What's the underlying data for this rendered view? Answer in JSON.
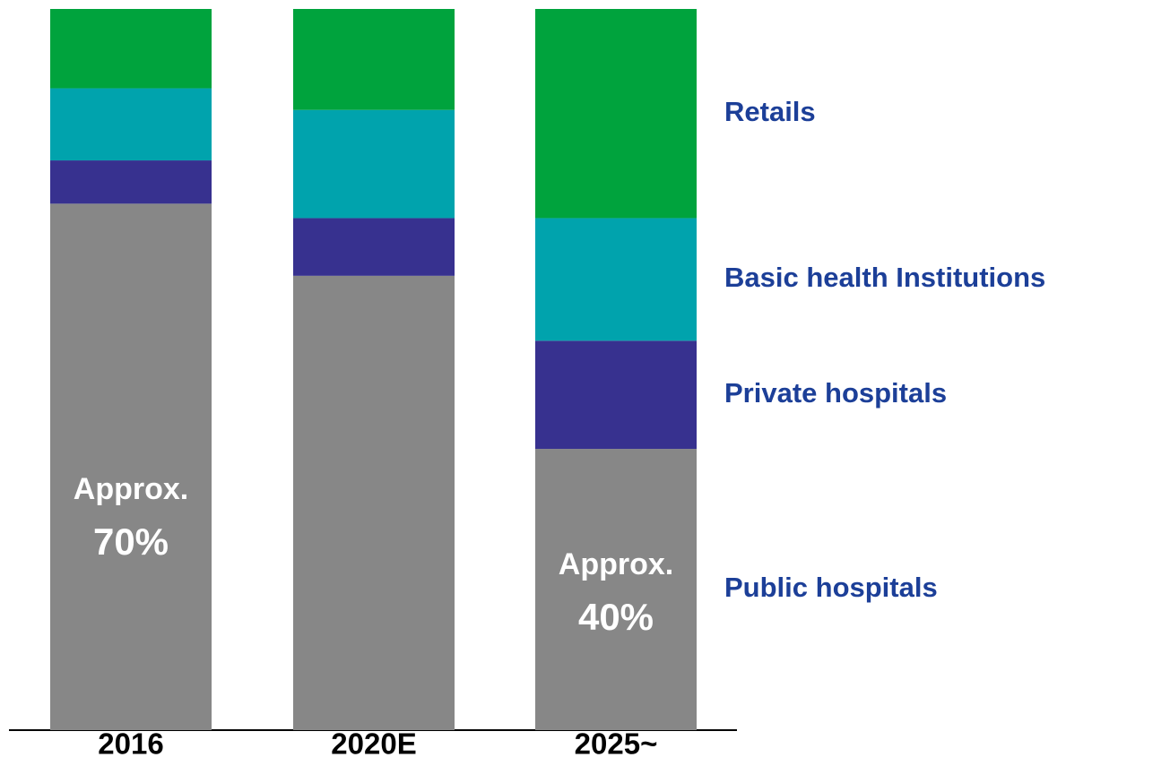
{
  "chart_data": {
    "type": "stacked_bar",
    "categories": [
      "2016",
      "2020E",
      "2025~"
    ],
    "series": [
      {
        "name": "Public hospitals",
        "color": "#878787",
        "values": [
          73,
          63,
          39
        ]
      },
      {
        "name": "Private hospitals",
        "color": "#37318f",
        "values": [
          6,
          8,
          15
        ]
      },
      {
        "name": "Basic health Institutions",
        "color": "#00a3ad",
        "values": [
          10,
          15,
          17
        ]
      },
      {
        "name": "Retails",
        "color": "#00a33d",
        "values": [
          11,
          14,
          29
        ]
      }
    ],
    "annotations": [
      [
        "Approx.",
        "70%"
      ],
      [
        "Approx.",
        "40%"
      ]
    ],
    "ylim": [
      0,
      100
    ]
  }
}
